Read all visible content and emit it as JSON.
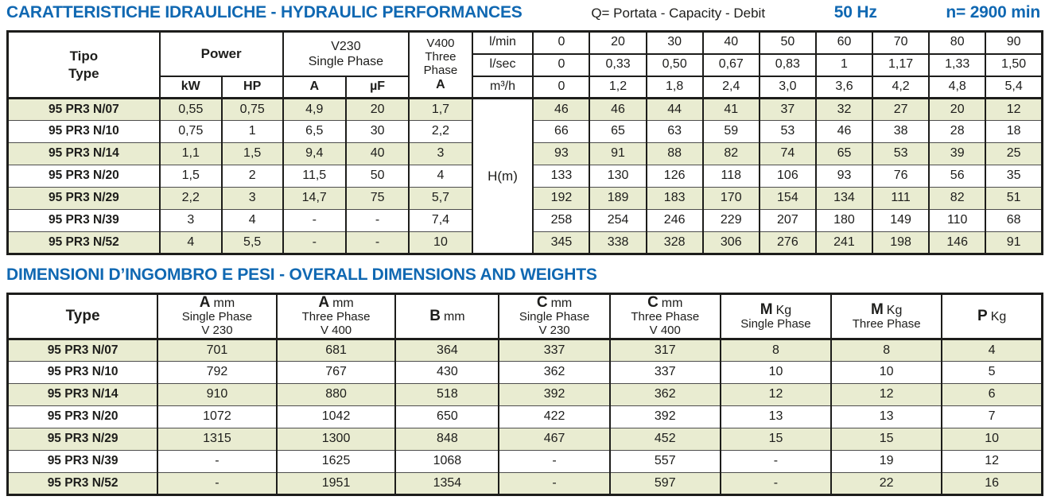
{
  "header_bar": {
    "title": "CARATTERISTICHE IDRAULICHE - HYDRAULIC PERFORMANCES",
    "capacity_label": "Q= Portata - Capacity - Debit",
    "frequency": "50 Hz",
    "speed": "n= 2900 min"
  },
  "hydraulic_table": {
    "type_header": {
      "line1": "Tipo",
      "line2": "Type"
    },
    "power_header": "Power",
    "kw_label": "kW",
    "hp_label": "HP",
    "v230_header": {
      "line1": "V230",
      "line2": "Single Phase"
    },
    "a_label": "A",
    "uf_label": "µF",
    "v400_header": {
      "line1": "V400",
      "line2": "Three",
      "line3": "Phase",
      "line4": "A"
    },
    "flow_unit_labels": {
      "lmin": "l/min",
      "lsec": "l/sec",
      "m3h": "m³/h"
    },
    "flow": {
      "lmin": [
        "0",
        "20",
        "30",
        "40",
        "50",
        "60",
        "70",
        "80",
        "90"
      ],
      "lsec": [
        "0",
        "0,33",
        "0,50",
        "0,67",
        "0,83",
        "1",
        "1,17",
        "1,33",
        "1,50"
      ],
      "m3h": [
        "0",
        "1,2",
        "1,8",
        "2,4",
        "3,0",
        "3,6",
        "4,2",
        "4,8",
        "5,4"
      ]
    },
    "head_label": "H(m)",
    "rows": [
      {
        "type": "95 PR3 N/07",
        "kw": "0,55",
        "hp": "0,75",
        "a": "4,9",
        "uf": "20",
        "a400": "1,7",
        "heads": [
          "46",
          "46",
          "44",
          "41",
          "37",
          "32",
          "27",
          "20",
          "12"
        ]
      },
      {
        "type": "95 PR3 N/10",
        "kw": "0,75",
        "hp": "1",
        "a": "6,5",
        "uf": "30",
        "a400": "2,2",
        "heads": [
          "66",
          "65",
          "63",
          "59",
          "53",
          "46",
          "38",
          "28",
          "18"
        ]
      },
      {
        "type": "95 PR3 N/14",
        "kw": "1,1",
        "hp": "1,5",
        "a": "9,4",
        "uf": "40",
        "a400": "3",
        "heads": [
          "93",
          "91",
          "88",
          "82",
          "74",
          "65",
          "53",
          "39",
          "25"
        ]
      },
      {
        "type": "95 PR3 N/20",
        "kw": "1,5",
        "hp": "2",
        "a": "11,5",
        "uf": "50",
        "a400": "4",
        "heads": [
          "133",
          "130",
          "126",
          "118",
          "106",
          "93",
          "76",
          "56",
          "35"
        ]
      },
      {
        "type": "95 PR3 N/29",
        "kw": "2,2",
        "hp": "3",
        "a": "14,7",
        "uf": "75",
        "a400": "5,7",
        "heads": [
          "192",
          "189",
          "183",
          "170",
          "154",
          "134",
          "111",
          "82",
          "51"
        ]
      },
      {
        "type": "95 PR3 N/39",
        "kw": "3",
        "hp": "4",
        "a": "-",
        "uf": "-",
        "a400": "7,4",
        "heads": [
          "258",
          "254",
          "246",
          "229",
          "207",
          "180",
          "149",
          "110",
          "68"
        ]
      },
      {
        "type": "95 PR3 N/52",
        "kw": "4",
        "hp": "5,5",
        "a": "-",
        "uf": "-",
        "a400": "10",
        "heads": [
          "345",
          "338",
          "328",
          "306",
          "276",
          "241",
          "198",
          "146",
          "91"
        ]
      }
    ]
  },
  "dimensions_section": {
    "title": "DIMENSIONI D’INGOMBRO E PESI - OVERALL DIMENSIONS AND WEIGHTS"
  },
  "dimensions_table": {
    "headers": [
      {
        "sym": "Type",
        "unit": "",
        "lines": []
      },
      {
        "sym": "A",
        "unit": "mm",
        "lines": [
          "Single Phase",
          "V 230"
        ]
      },
      {
        "sym": "A",
        "unit": "mm",
        "lines": [
          "Three Phase",
          "V 400"
        ]
      },
      {
        "sym": "B",
        "unit": "mm",
        "lines": []
      },
      {
        "sym": "C",
        "unit": "mm",
        "lines": [
          "Single Phase",
          "V 230"
        ]
      },
      {
        "sym": "C",
        "unit": "mm",
        "lines": [
          "Three Phase",
          "V 400"
        ]
      },
      {
        "sym": "M",
        "unit": "Kg",
        "lines": [
          "Single Phase"
        ]
      },
      {
        "sym": "M",
        "unit": "Kg",
        "lines": [
          "Three Phase"
        ]
      },
      {
        "sym": "P",
        "unit": "Kg",
        "lines": []
      }
    ],
    "rows": [
      {
        "type": "95 PR3 N/07",
        "values": [
          "701",
          "681",
          "364",
          "337",
          "317",
          "8",
          "8",
          "4"
        ]
      },
      {
        "type": "95 PR3 N/10",
        "values": [
          "792",
          "767",
          "430",
          "362",
          "337",
          "10",
          "10",
          "5"
        ]
      },
      {
        "type": "95 PR3 N/14",
        "values": [
          "910",
          "880",
          "518",
          "392",
          "362",
          "12",
          "12",
          "6"
        ]
      },
      {
        "type": "95 PR3 N/20",
        "values": [
          "1072",
          "1042",
          "650",
          "422",
          "392",
          "13",
          "13",
          "7"
        ]
      },
      {
        "type": "95 PR3 N/29",
        "values": [
          "1315",
          "1300",
          "848",
          "467",
          "452",
          "15",
          "15",
          "10"
        ]
      },
      {
        "type": "95 PR3 N/39",
        "values": [
          "-",
          "1625",
          "1068",
          "-",
          "557",
          "-",
          "19",
          "12"
        ]
      },
      {
        "type": "95 PR3 N/52",
        "values": [
          "-",
          "1951",
          "1354",
          "-",
          "597",
          "-",
          "22",
          "16"
        ]
      }
    ]
  },
  "colors": {
    "accent_blue": "#1068b2",
    "row_green": "#e9ecd1",
    "border_dark": "#1d1d1b"
  }
}
